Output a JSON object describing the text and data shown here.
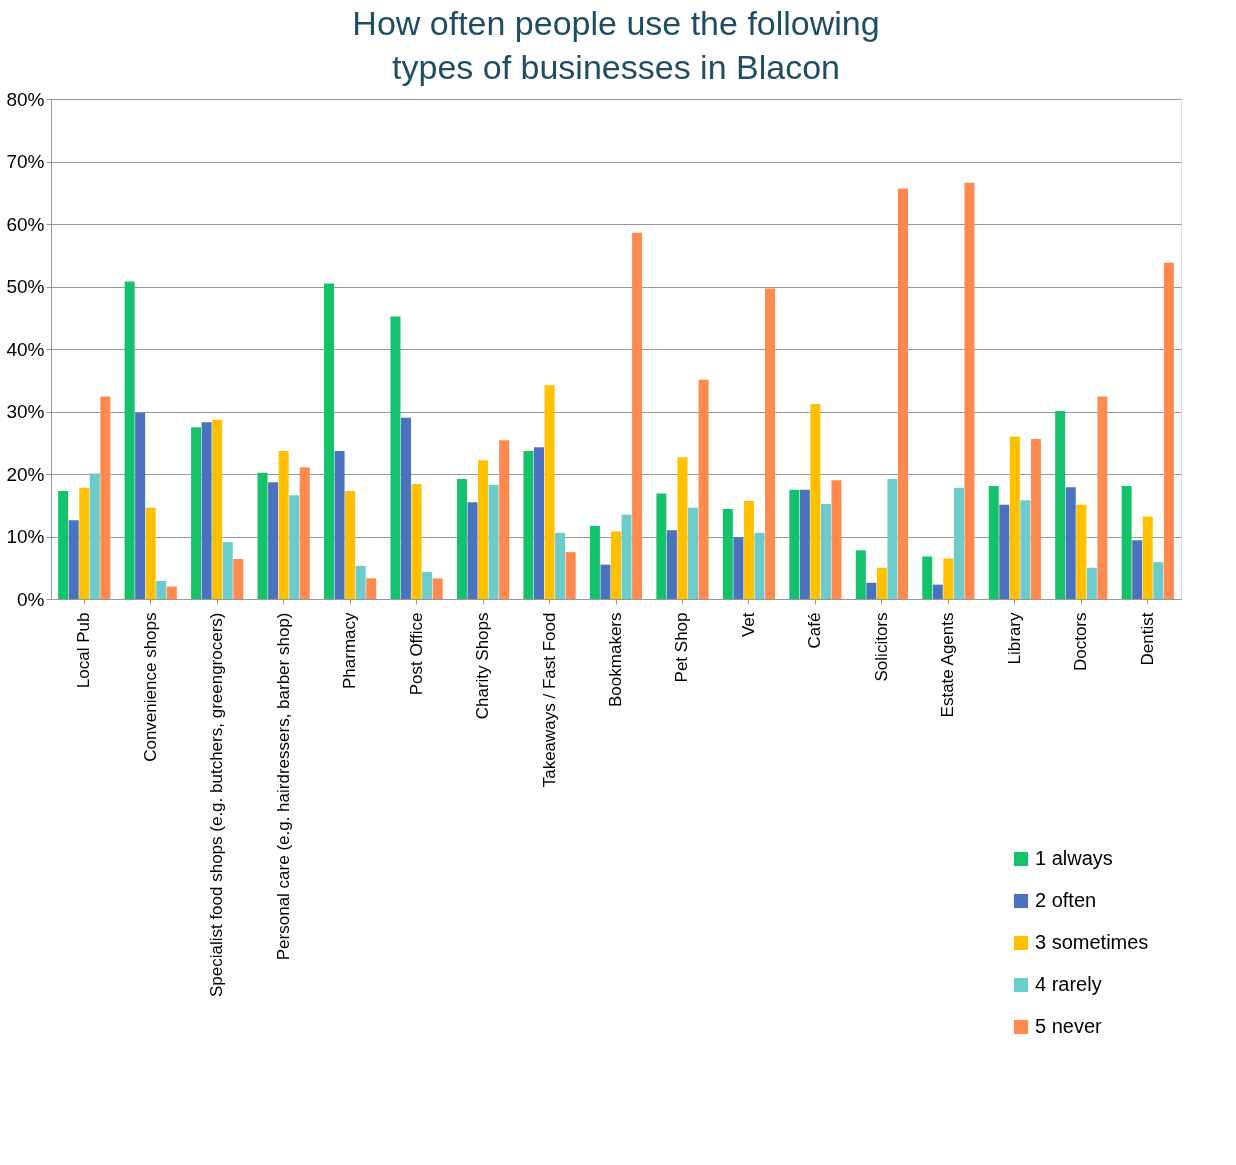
{
  "chart_data": {
    "type": "bar",
    "title": "How often people use the following types of businesses in Blacon",
    "categories": [
      "Local Pub",
      "Convenience shops",
      "Specialist food shops (e.g. butchers, greengrocers)",
      "Personal care (e.g. hairdressers, barber shop)",
      "Pharmacy",
      "Post Office",
      "Charity Shops",
      "Takeaways / Fast Food",
      "Bookmakers",
      "Pet Shop",
      "Vet",
      "Café",
      "Solicitors",
      "Estate Agents",
      "Library",
      "Doctors",
      "Dentist"
    ],
    "series": [
      {
        "name": "1 always",
        "color": "#13c26b",
        "values": [
          17.3,
          50.8,
          27.5,
          20.2,
          50.5,
          45.2,
          19.2,
          23.7,
          11.7,
          16.9,
          14.4,
          17.5,
          7.8,
          6.8,
          18.1,
          30.1,
          18.1
        ]
      },
      {
        "name": "2 often",
        "color": "#4a72be",
        "values": [
          12.6,
          29.8,
          28.3,
          18.7,
          23.7,
          29.0,
          15.5,
          24.3,
          5.5,
          11.0,
          9.9,
          17.5,
          2.6,
          2.3,
          15.1,
          17.9,
          9.4
        ]
      },
      {
        "name": "3 sometimes",
        "color": "#ffc000",
        "values": [
          17.8,
          14.6,
          28.7,
          23.7,
          17.3,
          18.4,
          22.2,
          34.2,
          10.8,
          22.7,
          15.7,
          31.2,
          5.0,
          6.5,
          26.0,
          15.1,
          13.2
        ]
      },
      {
        "name": "4 rarely",
        "color": "#6ccbcb",
        "values": [
          20.1,
          2.9,
          9.1,
          16.6,
          5.3,
          4.3,
          18.3,
          10.6,
          13.5,
          14.6,
          10.6,
          15.2,
          19.2,
          17.8,
          15.8,
          5.0,
          5.9
        ]
      },
      {
        "name": "5 never",
        "color": "#ff8a50",
        "values": [
          32.4,
          2.0,
          6.4,
          21.1,
          3.3,
          3.3,
          25.4,
          7.5,
          58.6,
          35.1,
          49.7,
          19.0,
          65.7,
          66.6,
          25.6,
          32.4,
          53.8
        ]
      }
    ],
    "ylim": [
      0,
      80
    ],
    "yticks": [
      {
        "value": 0,
        "label": "0%"
      },
      {
        "value": 10,
        "label": "10%"
      },
      {
        "value": 20,
        "label": "20%"
      },
      {
        "value": 30,
        "label": "30%"
      },
      {
        "value": 40,
        "label": "40%"
      },
      {
        "value": 50,
        "label": "50%"
      },
      {
        "value": 60,
        "label": "60%"
      },
      {
        "value": 70,
        "label": "70%"
      },
      {
        "value": 80,
        "label": "80%"
      }
    ],
    "grid": "y",
    "legend": "bottom right"
  }
}
